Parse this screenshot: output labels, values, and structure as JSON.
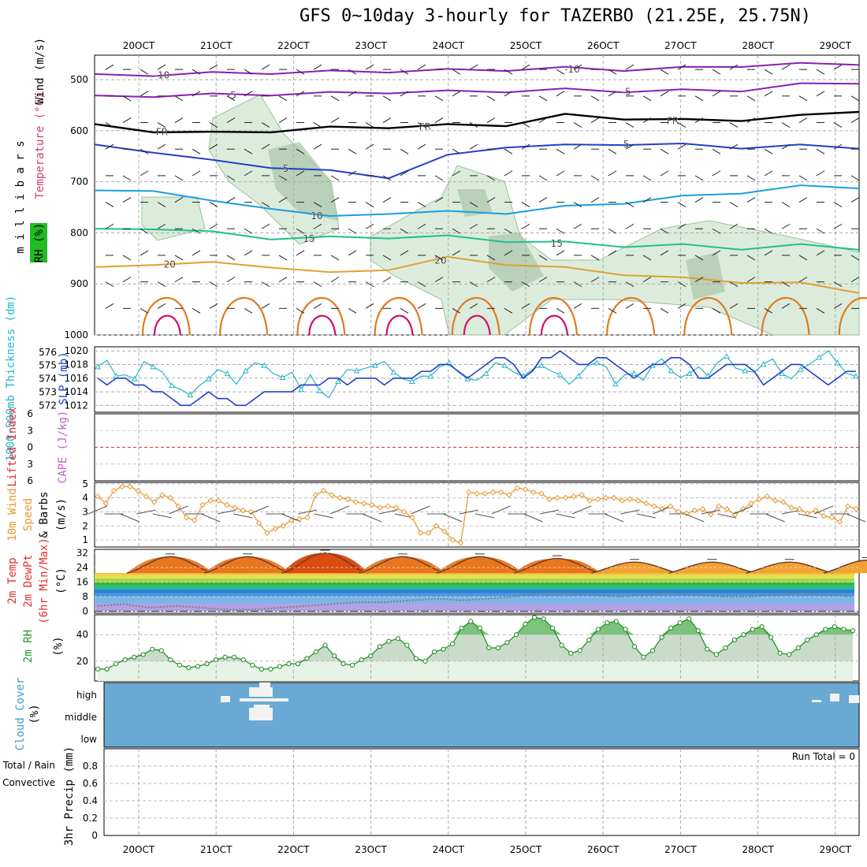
{
  "title": "GFS 0~10day 3-hourly for TAZERBO (21.25E, 25.75N)",
  "colors": {
    "purple": "#8a1fb8",
    "black": "#000000",
    "blue1": "#2040c8",
    "blue2": "#1a9ee0",
    "green": "#1fbf8f",
    "orange": "#e0a030",
    "rhfill": "#dcecdc",
    "rhdark": "#a9c4a9",
    "cloud": "#6aa9d3",
    "dewpt": "#808080",
    "wind10": "#e6962a",
    "rh2m": "#33aa33"
  },
  "chart_data": [
    {
      "type": "line",
      "name": "upper-air",
      "title": "Temperature (°C) / RH (%) / Wind (m/s)",
      "ylabel": "millibars",
      "yticks": [
        500,
        600,
        700,
        800,
        900,
        1000
      ],
      "dates": [
        "20OCT",
        "21OCT",
        "22OCT",
        "23OCT",
        "24OCT",
        "25OCT",
        "26OCT",
        "27OCT",
        "28OCT",
        "29OCT"
      ],
      "xlim": [
        0,
        10
      ],
      "isotherms": [
        {
          "label": "-10",
          "level_mb": [
            492,
            490,
            488,
            486,
            485,
            483,
            482,
            480,
            478,
            480,
            478,
            472,
            470,
            468
          ],
          "labels_at": [
            0.3,
            5.6
          ]
        },
        {
          "label": "-5",
          "level_mb": [
            534,
            531,
            530,
            528,
            527,
            524,
            524,
            522,
            520,
            522,
            522,
            520,
            510,
            505
          ],
          "labels_at": [
            1.2,
            6.3
          ]
        },
        {
          "label": "FR",
          "level_mb": [
            590,
            600,
            605,
            600,
            595,
            592,
            590,
            588,
            570,
            575,
            580,
            578,
            572,
            560
          ],
          "labels_at": [
            0.3,
            3.7,
            6.9
          ]
        },
        {
          "label": "5",
          "level_mb": [
            630,
            640,
            660,
            670,
            680,
            690,
            650,
            630,
            630,
            625,
            628,
            632,
            630,
            632
          ],
          "labels_at": [
            1.9,
            6.3
          ]
        },
        {
          "label": "10",
          "level_mb": [
            720,
            715,
            740,
            750,
            770,
            760,
            760,
            760,
            750,
            740,
            730,
            720,
            710,
            710
          ],
          "labels_at": [
            2.3
          ]
        },
        {
          "label": "15",
          "level_mb": [
            795,
            790,
            800,
            810,
            810,
            808,
            808,
            815,
            820,
            825,
            825,
            830,
            825,
            830
          ],
          "labels_at": [
            2.2,
            5.4
          ]
        },
        {
          "label": "20",
          "level_mb": [
            870,
            860,
            860,
            865,
            880,
            870,
            850,
            860,
            870,
            880,
            890,
            895,
            900,
            915
          ],
          "labels_at": [
            0.4,
            3.9
          ]
        }
      ]
    },
    {
      "type": "line",
      "name": "thickness-slp",
      "ylabel_left": "1000-500mb Thickness (dm)",
      "ylabel_right": "SLP (mb)",
      "ticks_left": [
        572,
        573,
        574,
        575,
        576
      ],
      "ticks_right": [
        1012,
        1014,
        1016,
        1018,
        1020
      ],
      "series": [
        {
          "name": "thickness (dm)",
          "values": [
            574.9,
            575.4,
            574.2,
            574.3,
            574.0,
            575.3,
            574.9,
            574.5,
            573.5,
            573.2,
            572.8,
            573.5,
            574.0,
            574.7,
            574.4,
            573.6,
            574.6,
            575.2,
            575.0,
            574.4,
            574.1,
            574.5,
            573.2,
            574.3,
            573.1,
            572.6,
            573.8,
            574.7,
            574.6,
            574.8,
            575.0,
            575.3,
            574.5,
            574.0,
            573.8,
            574.2,
            574.2,
            574.9,
            575.2,
            574.5,
            574.0,
            573.9,
            574.4,
            575.2,
            575.0,
            574.5,
            574.2,
            574.7,
            575.0,
            574.6,
            574.3,
            573.6,
            574.2,
            575.0,
            575.2,
            574.9,
            573.6,
            574.3,
            574.4,
            573.9,
            575.0,
            575.5,
            574.6,
            574.1,
            574.4,
            574.9,
            574.2,
            575.2,
            575.7,
            574.8,
            574.6,
            574.5,
            575.1,
            575.5,
            574.4,
            574.0,
            574.7,
            575.1,
            575.6,
            576.1,
            575.2,
            574.4,
            574.2
          ]
        },
        {
          "name": "SLP (mb)",
          "values": [
            1016,
            1015,
            1016,
            1016,
            1015,
            1015,
            1014,
            1014,
            1013,
            1012,
            1012,
            1013,
            1014,
            1013,
            1013,
            1012,
            1012,
            1013,
            1014,
            1014,
            1014,
            1014,
            1015,
            1015,
            1015,
            1016,
            1016,
            1015,
            1016,
            1016,
            1016,
            1015,
            1016,
            1016,
            1016,
            1017,
            1017,
            1018,
            1018,
            1017,
            1016,
            1017,
            1018,
            1019,
            1019,
            1018,
            1016,
            1017,
            1019,
            1019,
            1020,
            1019,
            1018,
            1018,
            1019,
            1019,
            1018,
            1017,
            1016,
            1017,
            1018,
            1018,
            1019,
            1019,
            1018,
            1016,
            1016,
            1017,
            1018,
            1018,
            1018,
            1017,
            1015,
            1016,
            1017,
            1018,
            1018,
            1017,
            1016,
            1015,
            1016,
            1017,
            1017
          ]
        }
      ]
    },
    {
      "type": "line",
      "name": "cape-li",
      "ylabel_left": "Lifted Index",
      "ylabel_right": "CAPE (J/kg)",
      "ticks_left": [
        6,
        3,
        0,
        -3,
        -6
      ],
      "tick_labels_left": [
        "6",
        "3",
        "0",
        "3",
        "6"
      ],
      "series": []
    },
    {
      "type": "line",
      "name": "wind10m",
      "ylabel": "10m Wind Speed (m/s) & Barbs",
      "yticks": [
        1,
        2,
        3,
        4,
        5
      ],
      "series": [
        {
          "name": "10m wind speed (m/s)",
          "values": [
            4.1,
            3.6,
            4.5,
            4.8,
            4.8,
            4.5,
            4.1,
            3.7,
            4.2,
            4.0,
            3.4,
            2.6,
            2.4,
            3.5,
            3.8,
            3.8,
            3.5,
            3.3,
            3.1,
            3.0,
            2.2,
            1.5,
            1.8,
            2.0,
            2.4,
            2.5,
            2.6,
            4.2,
            4.5,
            4.2,
            4.0,
            3.9,
            3.7,
            3.6,
            3.5,
            3.3,
            3.4,
            3.3,
            3.0,
            2.6,
            1.5,
            1.5,
            2.0,
            1.6,
            1.0,
            0.8,
            4.4,
            4.3,
            4.3,
            4.4,
            4.4,
            4.2,
            4.7,
            4.6,
            4.4,
            4.3,
            3.9,
            4.0,
            4.0,
            4.1,
            4.2,
            3.8,
            3.9,
            4.0,
            4.0,
            3.8,
            3.9,
            3.8,
            3.6,
            3.4,
            3.2,
            3.4,
            3.0,
            2.9,
            3.1,
            3.2,
            2.8,
            3.4,
            3.2,
            2.8,
            3.2,
            3.6,
            3.9,
            4.1,
            3.8,
            3.7,
            3.3,
            3.2,
            2.9,
            3.1,
            2.7,
            2.6,
            2.3,
            3.4,
            3.2
          ]
        }
      ]
    },
    {
      "type": "area",
      "name": "temp2m",
      "ylabel": "2m Temp / 2m DewPt (6hr Min/Max) (°C)",
      "yticks": [
        0,
        8,
        16,
        24,
        32
      ],
      "band_colors": [
        "#b3a0e6",
        "#7fb4e8",
        "#4a98e0",
        "#2e7fd6",
        "#1fbf8f",
        "#3ab33a",
        "#9fd84f",
        "#e6e04a",
        "#f2c040",
        "#f0a030",
        "#e8741e",
        "#d94a10"
      ],
      "band_edges": [
        0,
        4,
        8,
        10,
        12,
        14,
        16,
        18,
        20,
        24,
        28,
        30,
        40
      ],
      "series": [
        {
          "name": "2m temp max (°C)",
          "values": [
            30,
            30,
            22,
            30,
            30,
            22,
            32,
            32,
            22,
            30,
            30,
            22,
            30,
            30,
            22,
            29,
            29,
            21,
            27,
            27,
            21,
            27,
            27,
            21,
            27,
            27,
            21,
            28,
            28,
            21
          ]
        },
        {
          "name": "2m temp min (°C)",
          "values": [
            22,
            22,
            22,
            22,
            22,
            22,
            22,
            22,
            22,
            22,
            22,
            22,
            22,
            22,
            22,
            21,
            21,
            21,
            21,
            21,
            21,
            21,
            21,
            21,
            21,
            21,
            21,
            21,
            21,
            21
          ]
        },
        {
          "name": "2m dewpoint (°C)",
          "values": [
            3,
            4,
            2,
            3,
            2,
            1,
            1,
            2,
            3,
            4,
            5,
            5,
            6,
            7,
            6,
            7,
            8,
            10,
            10,
            9,
            8,
            9,
            10,
            9,
            8,
            8,
            9,
            10,
            9,
            8
          ]
        }
      ]
    },
    {
      "type": "area",
      "name": "rh2m",
      "ylabel": "2m RH (%)",
      "yticks": [
        20,
        40
      ],
      "series": [
        {
          "name": "2m RH (%)",
          "values": [
            14,
            14,
            18,
            21,
            23,
            25,
            29,
            28,
            21,
            17,
            15,
            16,
            18,
            21,
            23,
            23,
            21,
            17,
            14,
            14,
            16,
            18,
            18,
            22,
            27,
            32,
            24,
            18,
            17,
            21,
            24,
            31,
            35,
            37,
            32,
            22,
            20,
            27,
            29,
            33,
            45,
            50,
            45,
            30,
            30,
            34,
            40,
            48,
            53,
            52,
            45,
            32,
            26,
            28,
            36,
            44,
            49,
            50,
            44,
            31,
            23,
            28,
            38,
            45,
            49,
            52,
            43,
            29,
            25,
            30,
            36,
            40,
            44,
            46,
            38,
            26,
            25,
            30,
            36,
            40,
            44,
            46,
            44,
            43
          ]
        }
      ]
    },
    {
      "type": "heatmap",
      "name": "cloud-cover",
      "ylabel": "Cloud Cover (%)",
      "ylabels": [
        "high",
        "middle",
        "low"
      ]
    },
    {
      "type": "bar",
      "name": "precip",
      "ylabel": "3hr Precip (mm)",
      "legend": [
        "Total / Rain",
        "Convective"
      ],
      "yticks": [
        0,
        0.2,
        0.4,
        0.6,
        0.8
      ],
      "ylim": [
        0,
        1
      ],
      "annotation": "Run Total = 0",
      "values": []
    }
  ]
}
